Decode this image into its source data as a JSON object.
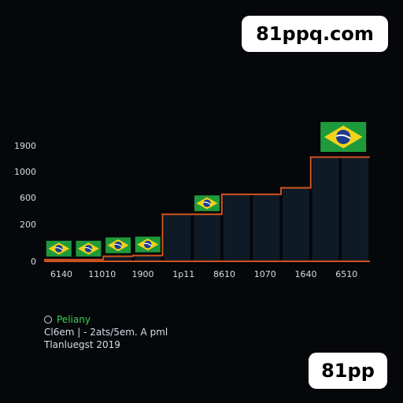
{
  "watermarks": {
    "top": "81ppq.com",
    "bottom": "81pp"
  },
  "chart_data": {
    "type": "bar",
    "title": "",
    "xlabel": "",
    "ylabel": "",
    "y_ticks": [
      "1900",
      "1000",
      "600",
      "200",
      "0"
    ],
    "x_ticks": [
      "6140",
      "11010",
      "1900",
      "1p11",
      "8610",
      "1070",
      "1640",
      "6510"
    ],
    "values": [
      20,
      20,
      60,
      70,
      350,
      350,
      650,
      650,
      750,
      1500,
      1500
    ],
    "line_values": [
      20,
      20,
      60,
      70,
      350,
      350,
      650,
      650,
      750,
      1500,
      1500
    ],
    "flag_markers": [
      0,
      1,
      2,
      3,
      5,
      10
    ],
    "colors": {
      "bar": "#0e1b27",
      "line": "#d2541f",
      "baseline": "#d2541f"
    },
    "grid": false,
    "legend_placement": "bottom-left"
  },
  "legend": {
    "name": "Peliany",
    "lines": [
      "Cl6em |  - 2ats/5em. A pml",
      "Tlanluegst 2019"
    ]
  }
}
